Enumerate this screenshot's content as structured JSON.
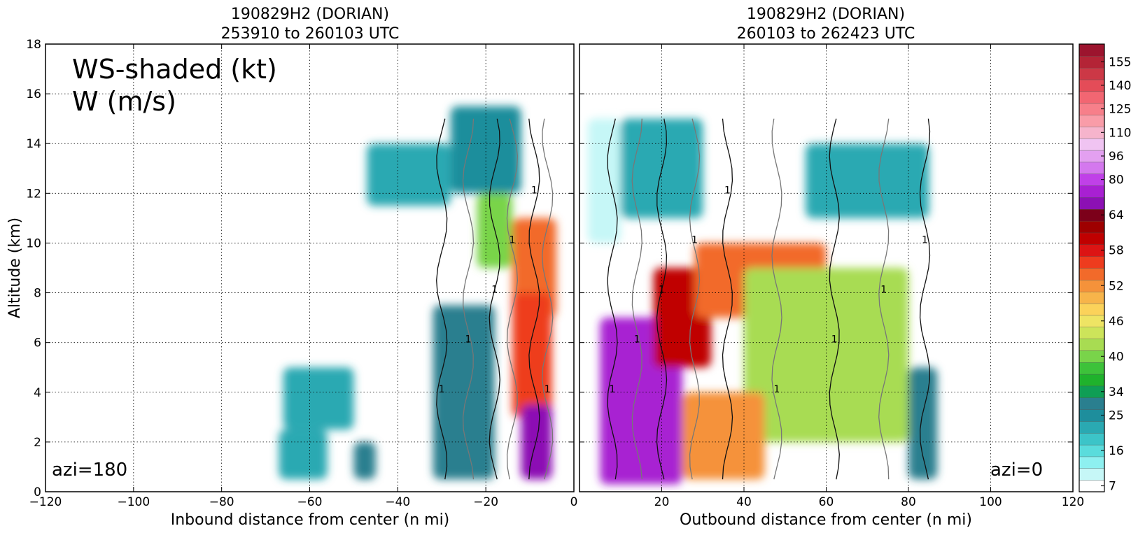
{
  "chart_data": [
    {
      "type": "heatmap",
      "panel": "left",
      "title": [
        "190829H2 (DORIAN)",
        "253910 to 260103 UTC"
      ],
      "xlabel": "Inbound distance from center (n mi)",
      "ylabel": "Altitude (km)",
      "xlim": [
        -120,
        0
      ],
      "ylim": [
        0,
        18
      ],
      "xticks": [
        -120,
        -100,
        -80,
        -60,
        -40,
        -20,
        0
      ],
      "yticks": [
        0,
        2,
        4,
        6,
        8,
        10,
        12,
        14,
        16,
        18
      ],
      "grid": true,
      "annotations": [
        "WS-shaded (kt)",
        "W (m/s)",
        "azi=180"
      ],
      "contour_label": "1",
      "field_blobs": [
        {
          "x": [
            -47,
            -28
          ],
          "y": [
            11.5,
            14
          ],
          "ws": 22
        },
        {
          "x": [
            -28,
            -12
          ],
          "y": [
            12,
            15.5
          ],
          "ws": 26
        },
        {
          "x": [
            -22,
            -14
          ],
          "y": [
            9,
            12
          ],
          "ws": 40
        },
        {
          "x": [
            -14,
            -4
          ],
          "y": [
            7,
            11
          ],
          "ws": 55
        },
        {
          "x": [
            -14,
            -5
          ],
          "y": [
            3,
            8
          ],
          "ws": 56
        },
        {
          "x": [
            -12,
            -5
          ],
          "y": [
            0.5,
            3.5
          ],
          "ws": 72
        },
        {
          "x": [
            -32,
            -18
          ],
          "y": [
            0.5,
            7.5
          ],
          "ws": 33
        },
        {
          "x": [
            -66,
            -50
          ],
          "y": [
            2.5,
            5
          ],
          "ws": 22
        },
        {
          "x": [
            -67,
            -56
          ],
          "y": [
            0.5,
            2.5
          ],
          "ws": 22
        },
        {
          "x": [
            -50,
            -45
          ],
          "y": [
            0.5,
            2
          ],
          "ws": 30
        }
      ]
    },
    {
      "type": "heatmap",
      "panel": "right",
      "title": [
        "190829H2 (DORIAN)",
        "260103 to 262423 UTC"
      ],
      "xlabel": "Outbound distance from center (n mi)",
      "xlim": [
        0,
        120
      ],
      "ylim": [
        0,
        18
      ],
      "xticks": [
        0,
        20,
        40,
        60,
        80,
        100,
        120
      ],
      "grid": true,
      "annotations": [
        "azi=0"
      ],
      "contour_label": "1",
      "field_blobs": [
        {
          "x": [
            2,
            10
          ],
          "y": [
            10,
            15
          ],
          "ws": 12
        },
        {
          "x": [
            10,
            30
          ],
          "y": [
            11,
            15
          ],
          "ws": 24
        },
        {
          "x": [
            55,
            85
          ],
          "y": [
            11,
            14
          ],
          "ws": 24
        },
        {
          "x": [
            5,
            25
          ],
          "y": [
            0.3,
            7
          ],
          "ws": 78
        },
        {
          "x": [
            18,
            32
          ],
          "y": [
            5,
            9
          ],
          "ws": 60
        },
        {
          "x": [
            28,
            60
          ],
          "y": [
            7,
            10
          ],
          "ws": 54
        },
        {
          "x": [
            40,
            80
          ],
          "y": [
            2,
            9
          ],
          "ws": 42
        },
        {
          "x": [
            80,
            87
          ],
          "y": [
            0.5,
            5
          ],
          "ws": 33
        },
        {
          "x": [
            25,
            45
          ],
          "y": [
            0.5,
            4
          ],
          "ws": 52
        }
      ]
    }
  ],
  "colorbar": {
    "tick_labels": [
      "7",
      "16",
      "25",
      "34",
      "40",
      "46",
      "52",
      "58",
      "64",
      "80",
      "96",
      "110",
      "125",
      "140",
      "155"
    ],
    "colors": [
      "#ffffff",
      "#c6f7f7",
      "#8ef0f0",
      "#5adcdc",
      "#3cc4c8",
      "#2aa9b2",
      "#1e8e9c",
      "#2a7f8f",
      "#0f9e55",
      "#1fb22c",
      "#3dc23a",
      "#79d44a",
      "#a8dc52",
      "#cde45a",
      "#eee464",
      "#fbd25a",
      "#f7b44a",
      "#f5923a",
      "#f26a2a",
      "#ee3c1e",
      "#dc1414",
      "#c00000",
      "#9e0000",
      "#7c001a",
      "#8c10b4",
      "#a820d2",
      "#c040e8",
      "#d478ee",
      "#e3a0f0",
      "#f0c4f2",
      "#f6b4cc",
      "#f99ca8",
      "#f77f8a",
      "#f26672",
      "#e44c58",
      "#cc3846",
      "#b42436",
      "#9c142e"
    ]
  }
}
